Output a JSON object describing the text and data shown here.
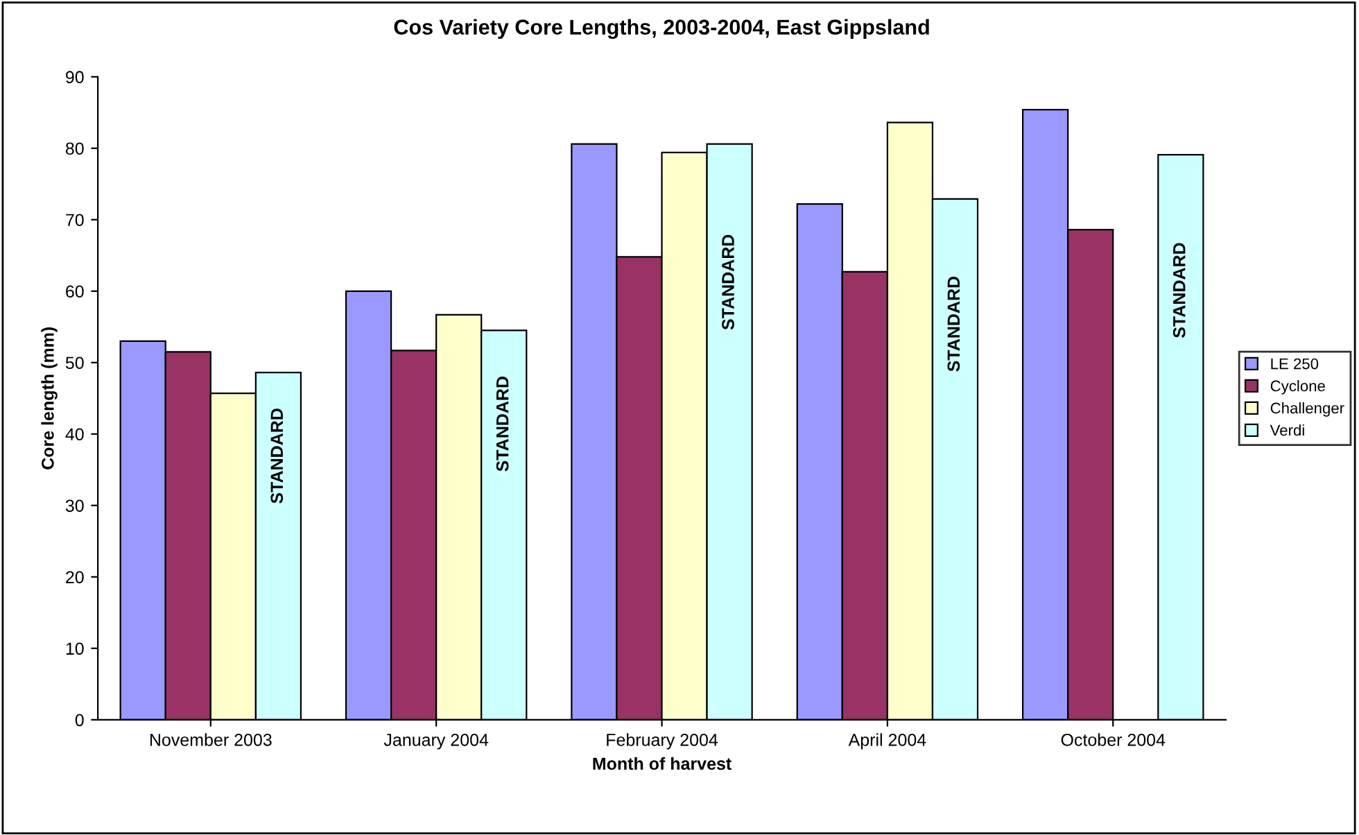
{
  "chart_data": {
    "type": "bar",
    "title": "Cos Variety Core Lengths, 2003-2004, East Gippsland",
    "xlabel": "Month of harvest",
    "ylabel": "Core length (mm)",
    "categories": [
      "November 2003",
      "January 2004",
      "February 2004",
      "April 2004",
      "October 2004"
    ],
    "series": [
      {
        "name": "LE 250",
        "color": "#9999ff",
        "values": [
          53.0,
          60.0,
          80.6,
          72.2,
          85.4
        ]
      },
      {
        "name": "Cyclone",
        "color": "#993366",
        "values": [
          51.5,
          51.7,
          64.8,
          62.7,
          68.6
        ]
      },
      {
        "name": "Challenger",
        "color": "#ffffcc",
        "values": [
          45.7,
          56.7,
          79.4,
          83.6,
          null
        ]
      },
      {
        "name": "Verdi",
        "color": "#ccffff",
        "values": [
          48.6,
          54.5,
          80.6,
          72.9,
          79.1
        ]
      }
    ],
    "ylim": [
      0,
      90
    ],
    "yticks": [
      0,
      10,
      20,
      30,
      40,
      50,
      60,
      70,
      80,
      90
    ],
    "grid": false,
    "legend": "right",
    "annotations": [
      "STANDARD",
      "STANDARD",
      "STANDARD",
      "STANDARD",
      "STANDARD"
    ]
  }
}
